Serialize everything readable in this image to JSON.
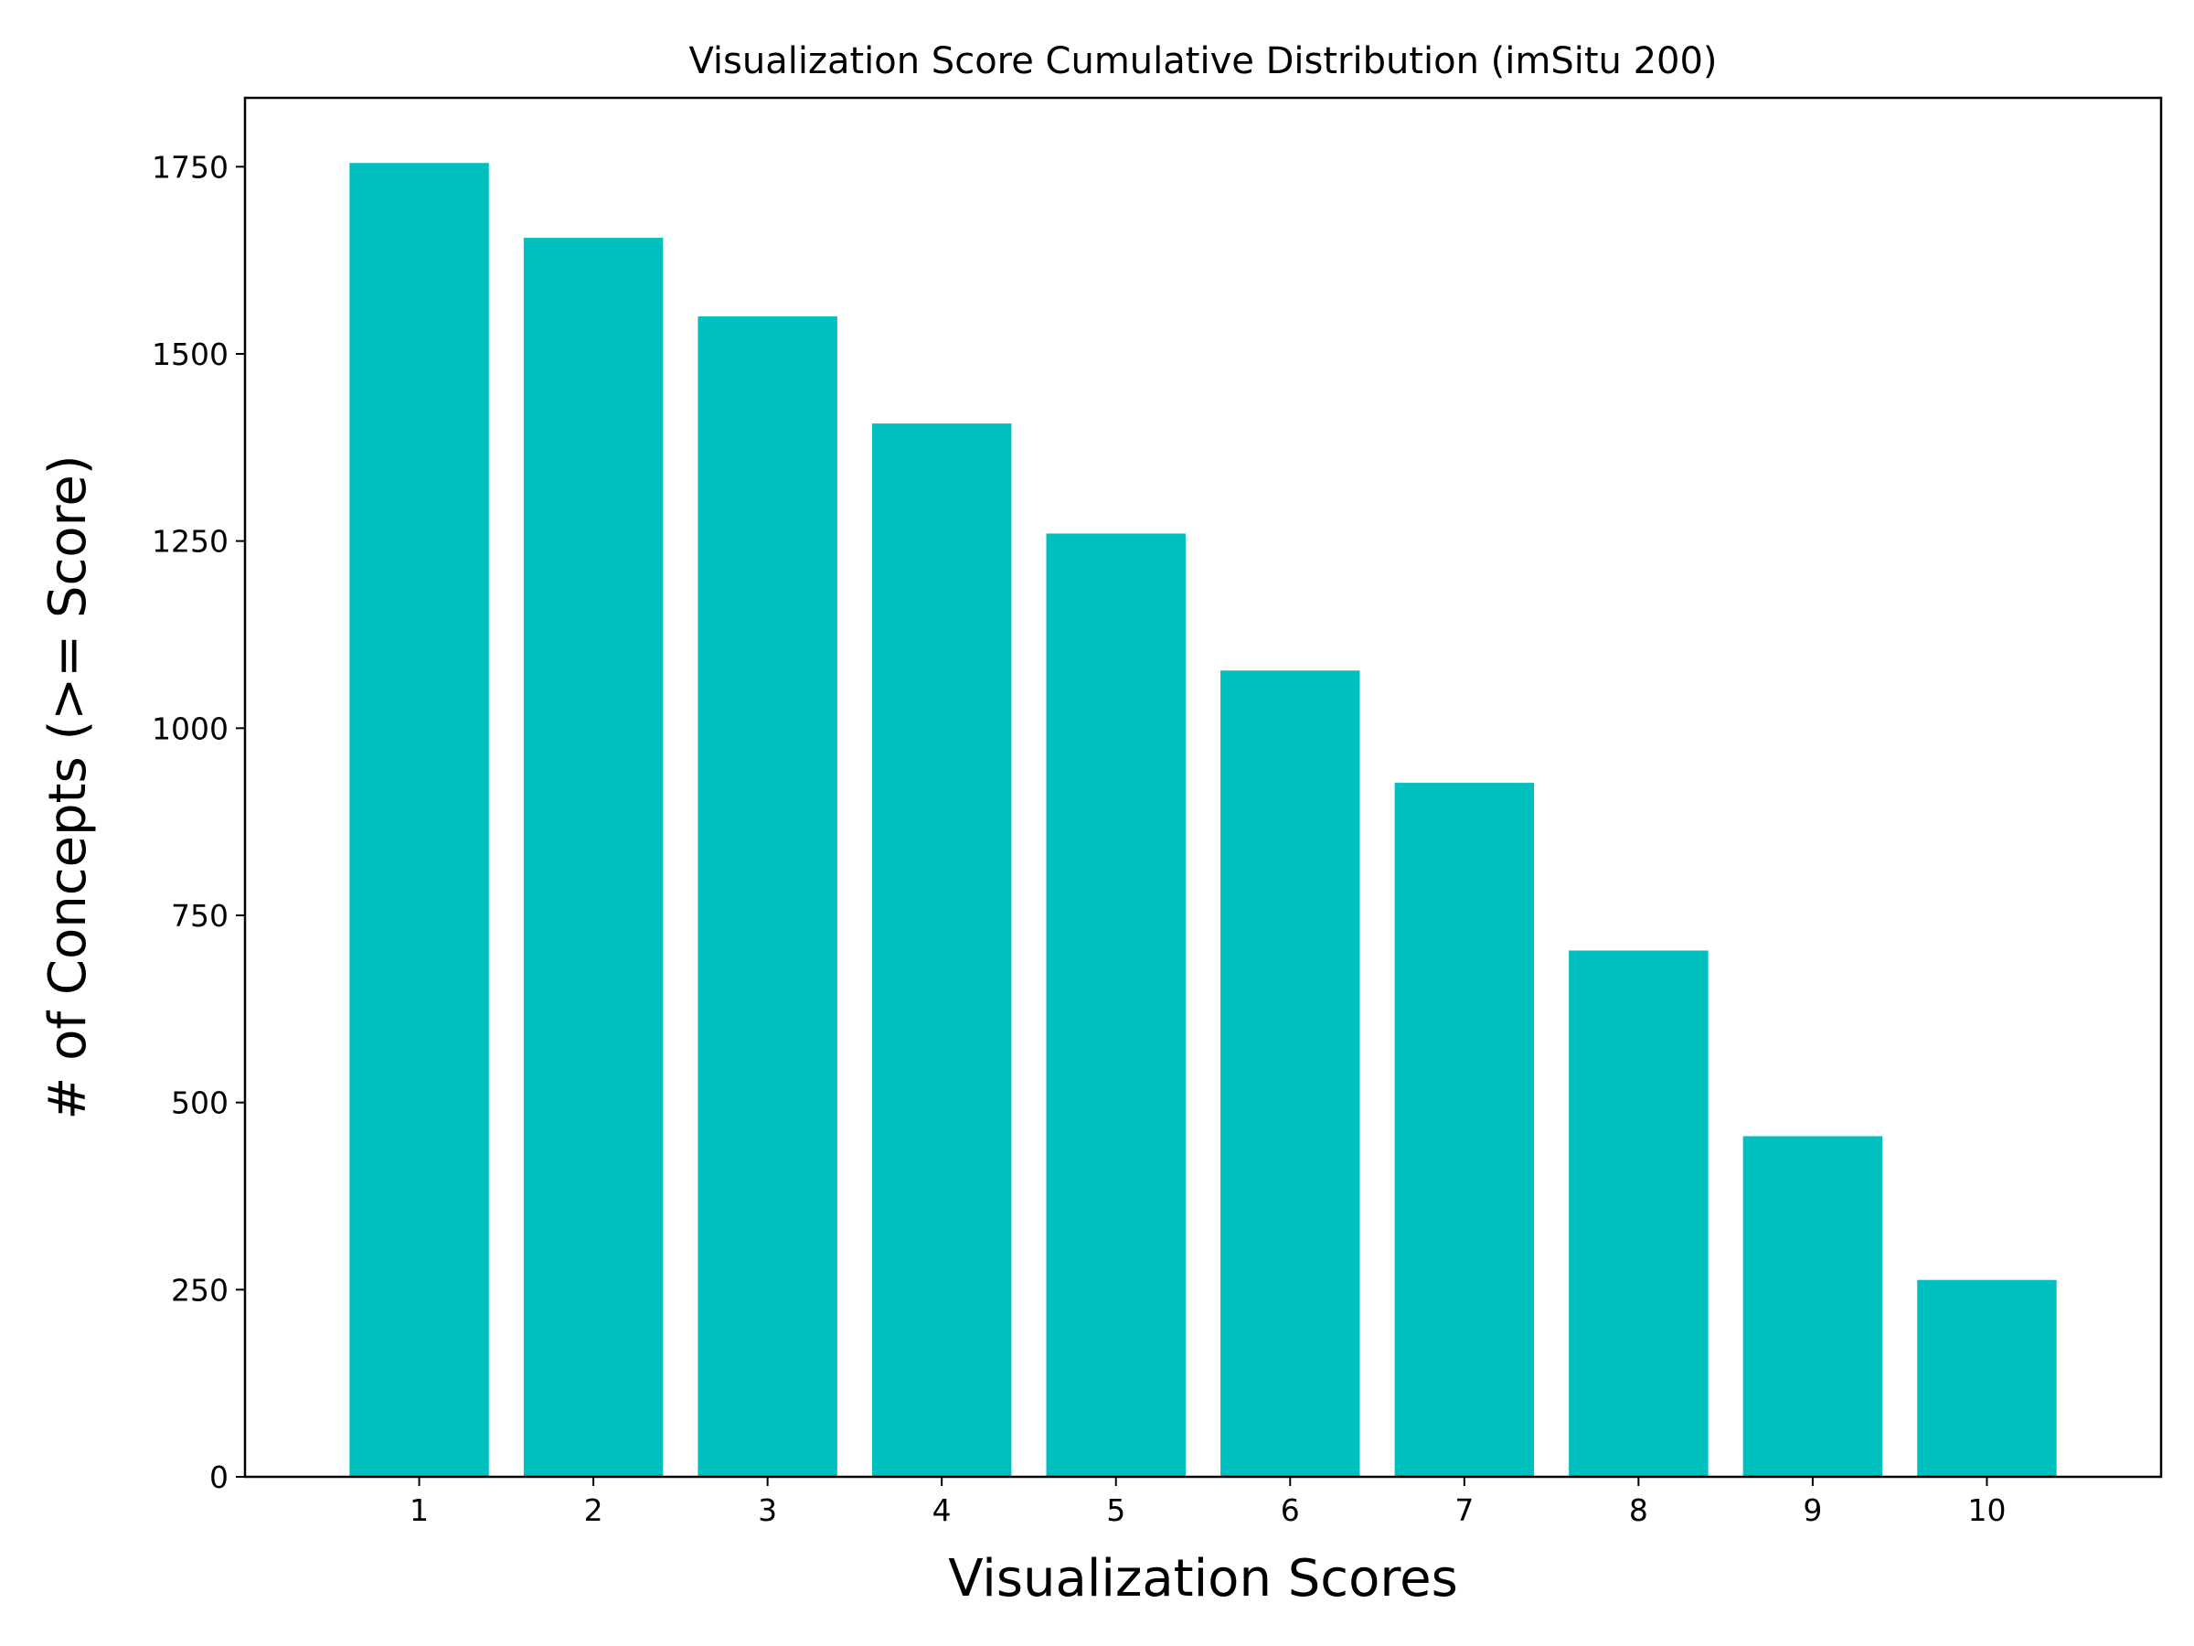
{
  "chart_data": {
    "type": "bar",
    "title": "Visualization Score Cumulative Distribution (imSitu 200)",
    "xlabel": "Visualization Scores",
    "ylabel": "# of Concepts (>= Score)",
    "categories": [
      "1",
      "2",
      "3",
      "4",
      "5",
      "6",
      "7",
      "8",
      "9",
      "10"
    ],
    "values": [
      1755,
      1655,
      1550,
      1407,
      1260,
      1077,
      927,
      703,
      455,
      263
    ],
    "ylim": [
      0,
      1842
    ],
    "yticks": [
      0,
      250,
      500,
      750,
      1000,
      1250,
      1500,
      1750
    ],
    "bar_color": "#00BFBF",
    "grid": false,
    "legend": "none"
  }
}
